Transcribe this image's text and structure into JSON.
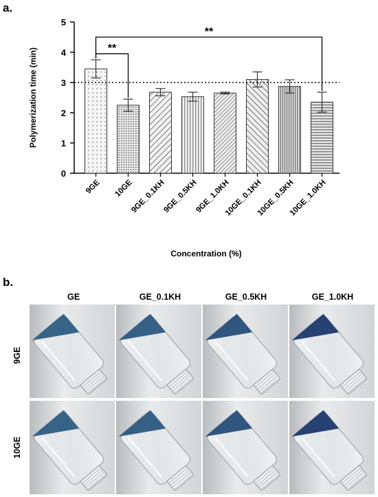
{
  "panel_a_label": "a.",
  "panel_b_label": "b.",
  "chart_data": {
    "type": "bar",
    "xlabel": "Concentration (%)",
    "ylabel": "Polymerization time (min)",
    "ylim": [
      0,
      5
    ],
    "yticks": [
      "0",
      "1",
      "2",
      "3",
      "4",
      "5"
    ],
    "categories": [
      "9GE",
      "10GE",
      "9GE_0.1KH",
      "9GE_0.5KH",
      "9GE_1.0KH",
      "10GE_0.1KH",
      "10GE_0.5KH",
      "10GE_1.0KH"
    ],
    "values": [
      3.45,
      2.25,
      2.68,
      2.53,
      2.65,
      3.1,
      2.87,
      2.35
    ],
    "errors": [
      0.3,
      0.2,
      0.12,
      0.15,
      0.03,
      0.25,
      0.22,
      0.33
    ],
    "patterns": [
      "dots-sparse",
      "dots-dense",
      "diag-right",
      "vertical",
      "diag-right-dense",
      "diag-left",
      "vertical-dense",
      "horizontal"
    ],
    "reference_line": 3,
    "reference_line_style": "dotted",
    "significance": [
      {
        "from": "9GE",
        "to": "10GE",
        "label": "**"
      },
      {
        "from": "9GE",
        "to": "10GE_1.0KH",
        "label": "**"
      }
    ],
    "grid": false,
    "legend": "none"
  },
  "photo_panel": {
    "column_headers": [
      "GE",
      "GE_0.1KH",
      "GE_0.5KH",
      "GE_1.0KH"
    ],
    "row_labels": [
      "9GE",
      "10GE"
    ],
    "blue_intensity": [
      [
        0.55,
        0.6,
        0.7,
        0.9
      ],
      [
        0.55,
        0.6,
        0.7,
        0.9
      ]
    ]
  },
  "colors": {
    "bar_stroke": "#333333",
    "bar_fill": "#e6e6e6",
    "gel_blue": "#1a3f6b",
    "axis": "#000000"
  }
}
